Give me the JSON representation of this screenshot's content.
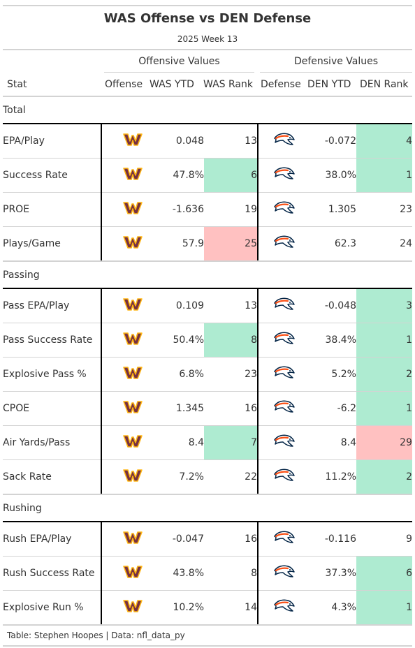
{
  "header": {
    "title": "WAS Offense vs DEN Defense",
    "subtitle": "2025 Week 13"
  },
  "spanners": {
    "offense": "Offensive Values",
    "defense": "Defensive Values"
  },
  "columns": {
    "stat": "Stat",
    "offense": "Offense",
    "was_ytd": "WAS YTD",
    "was_rank": "WAS Rank",
    "defense": "Defense",
    "den_ytd": "DEN YTD",
    "den_rank": "DEN Rank"
  },
  "colors": {
    "good": "#aeebd1",
    "bad": "#ffc1c1",
    "was_burgundy": "#773141",
    "was_gold": "#ffb612",
    "den_orange": "#fb4f14",
    "den_navy": "#002244"
  },
  "icons": {
    "offense_logo": "washington-commanders-logo",
    "defense_logo": "denver-broncos-logo"
  },
  "groups": [
    {
      "label": "Total",
      "rows": [
        {
          "stat": "EPA/Play",
          "off_ytd": "0.048",
          "off_rank": "13",
          "off_highlight": "",
          "def_ytd": "-0.072",
          "def_rank": "4",
          "def_highlight": "good"
        },
        {
          "stat": "Success Rate",
          "off_ytd": "47.8%",
          "off_rank": "6",
          "off_highlight": "good",
          "def_ytd": "38.0%",
          "def_rank": "1",
          "def_highlight": "good"
        },
        {
          "stat": "PROE",
          "off_ytd": "-1.636",
          "off_rank": "19",
          "off_highlight": "",
          "def_ytd": "1.305",
          "def_rank": "23",
          "def_highlight": ""
        },
        {
          "stat": "Plays/Game",
          "off_ytd": "57.9",
          "off_rank": "25",
          "off_highlight": "bad",
          "def_ytd": "62.3",
          "def_rank": "24",
          "def_highlight": ""
        }
      ]
    },
    {
      "label": "Passing",
      "rows": [
        {
          "stat": "Pass EPA/Play",
          "off_ytd": "0.109",
          "off_rank": "13",
          "off_highlight": "",
          "def_ytd": "-0.048",
          "def_rank": "3",
          "def_highlight": "good"
        },
        {
          "stat": "Pass Success Rate",
          "off_ytd": "50.4%",
          "off_rank": "8",
          "off_highlight": "good",
          "def_ytd": "38.4%",
          "def_rank": "1",
          "def_highlight": "good"
        },
        {
          "stat": "Explosive Pass %",
          "off_ytd": "6.8%",
          "off_rank": "23",
          "off_highlight": "",
          "def_ytd": "5.2%",
          "def_rank": "2",
          "def_highlight": "good"
        },
        {
          "stat": "CPOE",
          "off_ytd": "1.345",
          "off_rank": "16",
          "off_highlight": "",
          "def_ytd": "-6.2",
          "def_rank": "1",
          "def_highlight": "good"
        },
        {
          "stat": "Air Yards/Pass",
          "off_ytd": "8.4",
          "off_rank": "7",
          "off_highlight": "good",
          "def_ytd": "8.4",
          "def_rank": "29",
          "def_highlight": "bad"
        },
        {
          "stat": "Sack Rate",
          "off_ytd": "7.2%",
          "off_rank": "22",
          "off_highlight": "",
          "def_ytd": "11.2%",
          "def_rank": "2",
          "def_highlight": "good"
        }
      ]
    },
    {
      "label": "Rushing",
      "rows": [
        {
          "stat": "Rush EPA/Play",
          "off_ytd": "-0.047",
          "off_rank": "16",
          "off_highlight": "",
          "def_ytd": "-0.116",
          "def_rank": "9",
          "def_highlight": ""
        },
        {
          "stat": "Rush Success Rate",
          "off_ytd": "43.8%",
          "off_rank": "8",
          "off_highlight": "",
          "def_ytd": "37.3%",
          "def_rank": "6",
          "def_highlight": "good"
        },
        {
          "stat": "Explosive Run %",
          "off_ytd": "10.2%",
          "off_rank": "14",
          "off_highlight": "",
          "def_ytd": "4.3%",
          "def_rank": "1",
          "def_highlight": "good"
        }
      ]
    }
  ],
  "footer": {
    "source": "Table: Stephen Hoopes | Data: nfl_data_py"
  }
}
